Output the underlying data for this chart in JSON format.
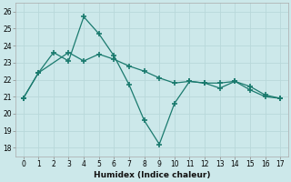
{
  "xlabel": "Humidex (Indice chaleur)",
  "background_color": "#cce8ea",
  "line_color": "#1a7a6e",
  "grid_color": "#b8d8da",
  "xlim": [
    -0.5,
    17.5
  ],
  "ylim": [
    17.5,
    26.5
  ],
  "xticks": [
    0,
    1,
    2,
    3,
    4,
    5,
    6,
    7,
    8,
    9,
    10,
    11,
    12,
    13,
    14,
    15,
    16,
    17
  ],
  "yticks": [
    18,
    19,
    20,
    21,
    22,
    23,
    24,
    25,
    26
  ],
  "series1_x": [
    0,
    1,
    2,
    3,
    4,
    5,
    6,
    7,
    8,
    9,
    10,
    11,
    12,
    13,
    14,
    15,
    16,
    17
  ],
  "series1_y": [
    20.9,
    22.4,
    23.6,
    23.1,
    25.7,
    24.7,
    23.4,
    21.7,
    19.6,
    18.2,
    20.6,
    21.9,
    21.8,
    21.8,
    21.9,
    21.6,
    21.1,
    20.9
  ],
  "series2_x": [
    0,
    1,
    3,
    4,
    5,
    6,
    7,
    8,
    9,
    10,
    11,
    12,
    13,
    14,
    15,
    16,
    17
  ],
  "series2_y": [
    20.9,
    22.4,
    23.6,
    23.1,
    23.5,
    23.2,
    22.8,
    22.5,
    22.1,
    21.8,
    21.9,
    21.8,
    21.5,
    21.9,
    21.4,
    21.0,
    20.9
  ]
}
